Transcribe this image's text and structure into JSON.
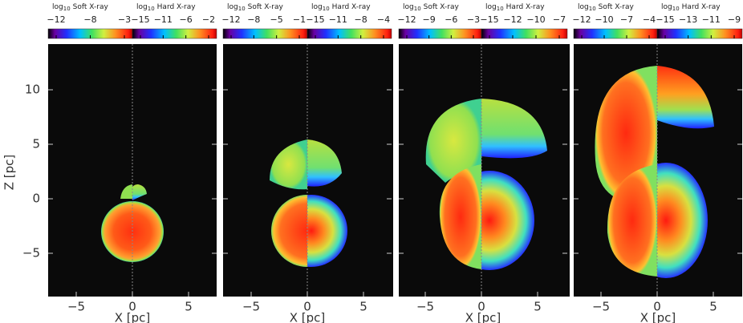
{
  "y_axis": {
    "label": "Z [pc]",
    "ticks": [
      "10",
      "5",
      "0",
      "−5"
    ]
  },
  "panels": [
    {
      "soft": {
        "log": "log",
        "base": "10",
        "name": "Soft X-ray",
        "ticks": [
          "−12",
          "−8",
          "−3"
        ]
      },
      "hard": {
        "log": "log",
        "base": "10",
        "name": "Hard X-ray",
        "ticks": [
          "−15",
          "−11",
          "−6",
          "−2"
        ]
      },
      "x_axis": {
        "label": "X [pc]",
        "ticks": [
          "−5",
          "0",
          "5"
        ]
      }
    },
    {
      "soft": {
        "log": "log",
        "base": "10",
        "name": "Soft X-ray",
        "ticks": [
          "−12",
          "−8",
          "−5",
          "−1"
        ]
      },
      "hard": {
        "log": "log",
        "base": "10",
        "name": "Hard X-ray",
        "ticks": [
          "−15",
          "−11",
          "−8",
          "−4"
        ]
      },
      "x_axis": {
        "label": "X [pc]",
        "ticks": [
          "−5",
          "0",
          "5"
        ]
      }
    },
    {
      "soft": {
        "log": "log",
        "base": "10",
        "name": "Soft X-ray",
        "ticks": [
          "−12",
          "−9",
          "−6",
          "−3"
        ]
      },
      "hard": {
        "log": "log",
        "base": "10",
        "name": "Hard X-ray",
        "ticks": [
          "−15",
          "−12",
          "−10",
          "−7"
        ]
      },
      "x_axis": {
        "label": "X [pc]",
        "ticks": [
          "−5",
          "0",
          "5"
        ]
      }
    },
    {
      "soft": {
        "log": "log",
        "base": "10",
        "name": "Soft X-ray",
        "ticks": [
          "−12",
          "−10",
          "−7",
          "−4"
        ]
      },
      "hard": {
        "log": "log",
        "base": "10",
        "name": "Hard X-ray",
        "ticks": [
          "−15",
          "−13",
          "−11",
          "−9"
        ]
      },
      "x_axis": {
        "label": "X [pc]",
        "ticks": [
          "−5",
          "0",
          "5"
        ]
      }
    }
  ]
}
